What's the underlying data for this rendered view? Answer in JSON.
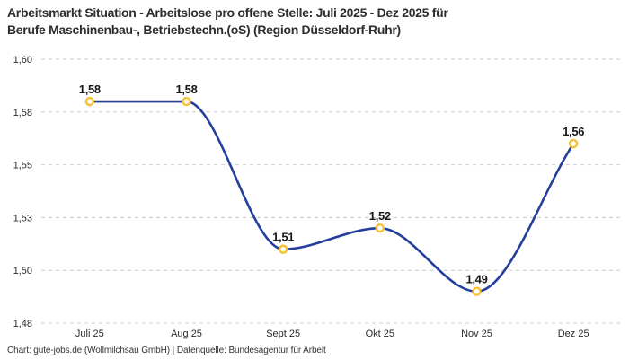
{
  "header": {
    "title_line1": "Arbeitsmarkt Situation - Arbeitslose pro offene Stelle: Juli 2025 - Dez 2025 für",
    "title_line2": "Berufe Maschinenbau-, Betriebstechn.(oS) (Region Düsseldorf-Ruhr)"
  },
  "chart_data": {
    "type": "line",
    "title": "Arbeitsmarkt Situation - Arbeitslose pro offene Stelle: Juli 2025 - Dez 2025 für Berufe Maschinenbau-, Betriebstechn.(oS) (Region Düsseldorf-Ruhr)",
    "categories": [
      "Juli 25",
      "Aug 25",
      "Sept 25",
      "Okt 25",
      "Nov 25",
      "Dez 25"
    ],
    "values": [
      1.58,
      1.58,
      1.51,
      1.52,
      1.49,
      1.56
    ],
    "point_labels": [
      "1,58",
      "1,58",
      "1,51",
      "1,52",
      "1,49",
      "1,56"
    ],
    "xlabel": "",
    "ylabel": "",
    "ylim": [
      1.475,
      1.6
    ],
    "y_ticks": [
      {
        "value": 1.6,
        "label": "1,60"
      },
      {
        "value": 1.575,
        "label": "1,58"
      },
      {
        "value": 1.55,
        "label": "1,55"
      },
      {
        "value": 1.525,
        "label": "1,53"
      },
      {
        "value": 1.5,
        "label": "1,50"
      },
      {
        "value": 1.475,
        "label": "1,48"
      }
    ],
    "grid": "horizontal-dashed",
    "legend": "none",
    "curve": "monotone",
    "line_color": "#233e9d",
    "marker_color": "#f8c132",
    "marker_fill": "#ffffff",
    "gridline_color": "#cccccc",
    "tick_label_color": "#2b2b2b",
    "point_label_color": "#161616"
  },
  "footer": {
    "attribution": "Chart: gute-jobs.de (Wollmilchsau GmbH) | Datenquelle: Bundesagentur für Arbeit"
  }
}
